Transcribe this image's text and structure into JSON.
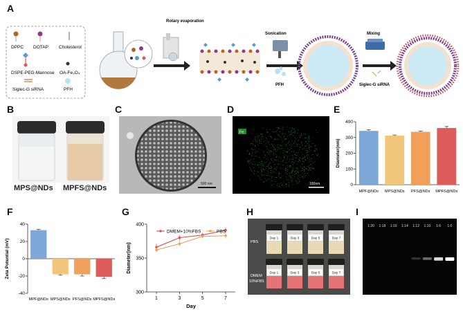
{
  "panels": {
    "A": "A",
    "B": "B",
    "C": "C",
    "D": "D",
    "E": "E",
    "F": "F",
    "G": "G",
    "H": "H",
    "I": "I"
  },
  "panelA": {
    "legend": {
      "dppc": "DPPC",
      "dotap": "DOTAP",
      "cholesterol": "Cholesterol",
      "dspe": "DSPE-PEG-Mannose",
      "oafe": "OA-Fe₃O₄",
      "sirna": "Siglec-G siRNA",
      "pfh": "PFH"
    },
    "steps": {
      "rotary": "Rotary evaporation",
      "sonication": "Sonication",
      "pfh": "PFH",
      "mixing": "Mixing",
      "sirna": "Siglec-G siRNA"
    }
  },
  "panelB": {
    "left": "MPS@NDs",
    "right": "MPFS@NDs"
  },
  "panelC": {
    "scale": "500 nm"
  },
  "panelD": {
    "element": "Fe",
    "scale": "100nm"
  },
  "panelE": {
    "ylabel": "Diameter(nm)"
  },
  "panelF": {
    "ylabel": "Zeta Potential (mV)"
  },
  "panelG": {
    "xlabel": "Day",
    "ylabel": "Diameter(nm)"
  },
  "panelH": {
    "row1": "PBS",
    "row2a": "DMEM",
    "row2b": "10%FBS",
    "days": [
      "Day 1",
      "Day 3",
      "Day 5",
      "Day 7"
    ]
  },
  "panelI": {
    "ratios": [
      "1:20",
      "1:18",
      "1:16",
      "1:14",
      "1:12",
      "1:10",
      "1:6",
      "1:0"
    ]
  },
  "chart_data": [
    {
      "panel": "E",
      "type": "bar",
      "categories": [
        "MPF@NDs",
        "MPS@NDs",
        "PFS@NDs",
        "MPFS@NDs"
      ],
      "values": [
        342,
        312,
        336,
        360
      ],
      "errors": [
        8,
        4,
        4,
        10
      ],
      "colors": [
        "#7ea7d8",
        "#f2c57c",
        "#f0a05a",
        "#de5b5b"
      ],
      "ylim": [
        0,
        400
      ],
      "yticks": [
        0,
        100,
        200,
        300,
        400
      ],
      "ylabel": "Diameter(nm)"
    },
    {
      "panel": "F",
      "type": "bar",
      "categories": [
        "MPF@NDs",
        "MPS@NDs",
        "PFS@NDs",
        "MPFS@NDs"
      ],
      "values": [
        33,
        -18,
        -18,
        -21
      ],
      "errors": [
        1,
        1,
        2,
        2
      ],
      "colors": [
        "#7ea7d8",
        "#f2c57c",
        "#f0a05a",
        "#de5b5b"
      ],
      "ylim": [
        -40,
        40
      ],
      "yticks": [
        -40,
        -20,
        0,
        20,
        40
      ],
      "ylabel": "Zeta Potential (mV)"
    },
    {
      "panel": "G",
      "type": "line",
      "x": [
        1,
        3,
        5,
        7
      ],
      "xticks": [
        1,
        3,
        5,
        7
      ],
      "ylim": [
        300,
        400
      ],
      "yticks": [
        300,
        350,
        400
      ],
      "xlabel": "Day",
      "ylabel": "Diameter(nm)",
      "legend": "top-left",
      "series": [
        {
          "name": "DMEM+10%FBS",
          "values": [
            366,
            380,
            384,
            391
          ],
          "errors": [
            5,
            4,
            3,
            4
          ],
          "color": "#d9534f"
        },
        {
          "name": "PBS",
          "values": [
            362,
            371,
            382,
            383
          ],
          "errors": [
            4,
            4,
            3,
            4
          ],
          "color": "#f0a05a"
        }
      ]
    },
    {
      "panel": "I",
      "type": "table",
      "categories": [
        "1:20",
        "1:18",
        "1:16",
        "1:14",
        "1:12",
        "1:10",
        "1:6",
        "1:0"
      ],
      "values": [
        0,
        0,
        0,
        0,
        0.18,
        0.4,
        0.85,
        1
      ]
    }
  ]
}
